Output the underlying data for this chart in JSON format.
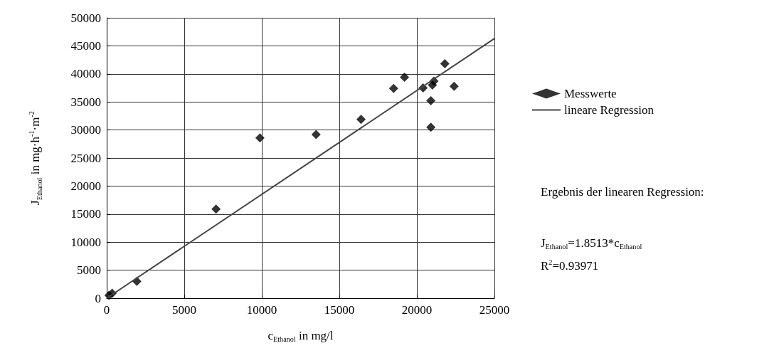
{
  "chart_data": {
    "type": "scatter",
    "xlabel": "c$_{Ethanol}$ in mg/l",
    "ylabel": "J$_{Ethanol}$ in mg·h$^{-1}$·m$^{-2}$",
    "xlim": [
      0,
      25000
    ],
    "xticks": [
      0,
      5000,
      10000,
      15000,
      20000,
      25000
    ],
    "ylim": [
      0,
      50000
    ],
    "yticks": [
      0,
      5000,
      10000,
      15000,
      20000,
      25000,
      30000,
      35000,
      40000,
      45000,
      50000
    ],
    "grid": true,
    "legend": "right",
    "series": [
      {
        "name": "Messwerte",
        "marker": "diamond",
        "color": "#000000",
        "x": [
          150,
          350,
          1940,
          7050,
          9880,
          13500,
          16400,
          18500,
          19200,
          20400,
          21100,
          21000,
          20900,
          20900,
          21800,
          22400
        ],
        "values": [
          500,
          900,
          3000,
          15900,
          28600,
          29200,
          31900,
          37400,
          39400,
          37500,
          38700,
          38000,
          35200,
          30500,
          41800,
          37800
        ]
      },
      {
        "name": "lineare Regression",
        "type": "line",
        "color": "#444444",
        "line_style": "solid",
        "x": [
          0,
          25000
        ],
        "values": [
          0,
          46300
        ]
      }
    ],
    "annotations": [
      "Ergebnis der linearen Regression:",
      "J$_{Ethanol}$=1.8513*c$_{Ethanol}$",
      "R$^{2}$=0.93971"
    ]
  }
}
